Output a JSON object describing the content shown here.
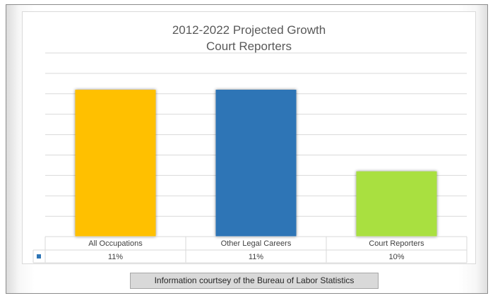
{
  "chart_data": {
    "type": "bar",
    "title": "2012-2022 Projected Growth",
    "subtitle": "Court Reporters",
    "categories": [
      "All Occupations",
      "Other Legal Careers",
      "Court Reporters"
    ],
    "value_labels": [
      "11%",
      "11%",
      "10%"
    ],
    "series": [
      {
        "values": [
          11,
          11,
          10
        ],
        "colors": [
          "#FFC000",
          "#2E75B6",
          "#A9E041"
        ]
      }
    ],
    "ylim": [
      9.2,
      11.2
    ],
    "grid": true,
    "legend": "data-table",
    "xlabel": "",
    "ylabel": ""
  },
  "caption": "Information courtsey of the Bureau of Labor Statistics",
  "legend_key_color": "#2E75B6"
}
